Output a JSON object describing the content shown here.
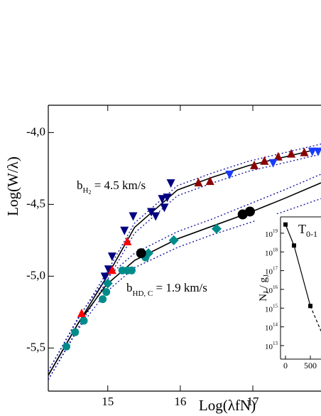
{
  "chart_data": [
    {
      "type": "scatter",
      "x_label": "Log(λfN)",
      "y_label": "Log(W/λ)",
      "xlim": [
        14.18,
        17.94
      ],
      "ylim": [
        -5.8,
        -3.81
      ],
      "xticks": [
        15,
        16,
        17
      ],
      "yticks": [
        {
          "value": -4.0,
          "label": "-4,0"
        },
        {
          "value": -4.5,
          "label": "-4,5"
        },
        {
          "value": -5.0,
          "label": "-5,0"
        },
        {
          "value": -5.5,
          "label": "-5,5"
        }
      ],
      "annotations": [
        {
          "text": "b",
          "sub": "H",
          "subsub": "2",
          "rest": " = 4.5 km/s"
        },
        {
          "text": "b",
          "sub": "HD, C",
          "rest": " = 1.9 km/s"
        }
      ],
      "series": [
        {
          "kind": "line",
          "color": "#000000",
          "dash": false,
          "x": [
            14.18,
            14.59,
            14.98,
            15.37,
            15.96,
            16.45,
            16.94,
            17.94
          ],
          "values": [
            -5.69,
            -5.33,
            -5.01,
            -4.66,
            -4.4,
            -4.31,
            -4.23,
            -4.11
          ]
        },
        {
          "kind": "line",
          "color": "#1a1aa0",
          "dash": true,
          "x": [
            14.18,
            14.59,
            14.98,
            15.37,
            15.96,
            16.45,
            16.94,
            17.94
          ],
          "values": [
            -5.66,
            -5.3,
            -4.98,
            -4.63,
            -4.37,
            -4.28,
            -4.2,
            -4.08
          ]
        },
        {
          "kind": "line",
          "color": "#1a1aa0",
          "dash": true,
          "x": [
            14.18,
            14.59,
            14.98,
            15.37,
            15.96,
            16.45,
            16.94,
            17.94
          ],
          "values": [
            -5.72,
            -5.36,
            -5.04,
            -4.7,
            -4.44,
            -4.35,
            -4.27,
            -4.15
          ]
        },
        {
          "kind": "line",
          "color": "#000000",
          "dash": false,
          "x": [
            14.18,
            14.59,
            14.98,
            15.37,
            15.96,
            16.45,
            16.94,
            17.43,
            17.94
          ],
          "values": [
            -5.69,
            -5.33,
            -5.06,
            -4.89,
            -4.74,
            -4.65,
            -4.56,
            -4.46,
            -4.35
          ]
        },
        {
          "kind": "line",
          "color": "#1a1aa0",
          "dash": true,
          "x": [
            14.18,
            14.59,
            14.98,
            15.37,
            15.96,
            16.45,
            16.94,
            17.43,
            17.94
          ],
          "values": [
            -5.66,
            -5.29,
            -5.01,
            -4.84,
            -4.69,
            -4.6,
            -4.5,
            -4.4,
            -4.29
          ]
        },
        {
          "kind": "line",
          "color": "#1a1aa0",
          "dash": true,
          "x": [
            14.18,
            14.59,
            14.98,
            15.37,
            15.96,
            16.45,
            16.94,
            17.43,
            17.94
          ],
          "values": [
            -5.72,
            -5.37,
            -5.11,
            -4.94,
            -4.8,
            -4.71,
            -4.63,
            -4.55,
            -4.46
          ]
        },
        {
          "kind": "points",
          "marker": "circle",
          "color": "#008b8b",
          "x": [
            14.43,
            14.55,
            14.67,
            14.93,
            14.98,
            15.2,
            15.27,
            15.33,
            15.52
          ],
          "values": [
            -5.49,
            -5.39,
            -5.31,
            -5.16,
            -5.11,
            -4.96,
            -4.96,
            -4.96,
            -4.87
          ]
        },
        {
          "kind": "points",
          "marker": "diamond",
          "color": "#008b8b",
          "x": [
            15.0,
            15.56,
            15.91,
            16.5
          ],
          "values": [
            -5.05,
            -4.84,
            -4.75,
            -4.67
          ]
        },
        {
          "kind": "points",
          "marker": "circle-big",
          "color": "#000000",
          "x": [
            15.46,
            16.86,
            16.96
          ],
          "values": [
            -4.84,
            -4.57,
            -4.55
          ]
        },
        {
          "kind": "points",
          "marker": "down-triangle",
          "color": "#000080",
          "x": [
            14.96,
            15.01,
            15.06,
            15.23,
            15.35,
            15.6,
            15.66,
            15.75,
            15.78,
            15.82,
            15.87
          ],
          "values": [
            -5.0,
            -4.95,
            -4.86,
            -4.68,
            -4.58,
            -4.55,
            -4.58,
            -4.46,
            -4.52,
            -4.45,
            -4.35
          ]
        },
        {
          "kind": "points",
          "marker": "up-triangle",
          "color": "#ff0000",
          "x": [
            14.64,
            15.06,
            15.27
          ],
          "values": [
            -5.26,
            -4.96,
            -4.76
          ]
        },
        {
          "kind": "points",
          "marker": "up-triangle",
          "color": "#8b0000",
          "x": [
            16.25,
            16.41,
            17.02,
            17.16,
            17.35,
            17.53,
            17.71
          ],
          "values": [
            -4.35,
            -4.34,
            -4.23,
            -4.2,
            -4.17,
            -4.15,
            -4.14
          ]
        },
        {
          "kind": "points",
          "marker": "down-triangle",
          "color": "#1a3cff",
          "x": [
            16.68,
            17.28,
            17.82,
            17.9
          ],
          "values": [
            -4.29,
            -4.21,
            -4.13,
            -4.13
          ]
        }
      ]
    },
    {
      "type": "line",
      "log_y": true,
      "title": "T",
      "title_sub": "0-1",
      "y_label": "N",
      "y_label_sub": "J",
      "y_label_rest": " / g",
      "y_label_sub2": "J",
      "xlim": [
        -100,
        714
      ],
      "ylim": [
        1900000000000.0,
        7.4e+19
      ],
      "xticks": [
        0,
        500
      ],
      "yticks": [
        {
          "value": 10000000000000.0,
          "label": "10",
          "exponent": "13"
        },
        {
          "value": 100000000000000.0,
          "label": "10",
          "exponent": "14"
        },
        {
          "value": 1000000000000000.0,
          "label": "10",
          "exponent": "15"
        },
        {
          "value": 1e+16,
          "label": "10",
          "exponent": "16"
        },
        {
          "value": 1e+17,
          "label": "10",
          "exponent": "17"
        },
        {
          "value": 1e+18,
          "label": "10",
          "exponent": "18"
        },
        {
          "value": 1e+19,
          "label": "10",
          "exponent": "19"
        }
      ],
      "series": [
        {
          "color": "#000000",
          "dash": false,
          "marker": true,
          "x": [
            0,
            171,
            500
          ],
          "values": [
            2.9e+19,
            2.2e+18,
            1300000000000000.0
          ]
        },
        {
          "color": "#000000",
          "dash": true,
          "marker": false,
          "x": [
            500,
            714
          ],
          "values": [
            1300000000000000.0,
            60000000000000.0
          ]
        }
      ]
    }
  ]
}
